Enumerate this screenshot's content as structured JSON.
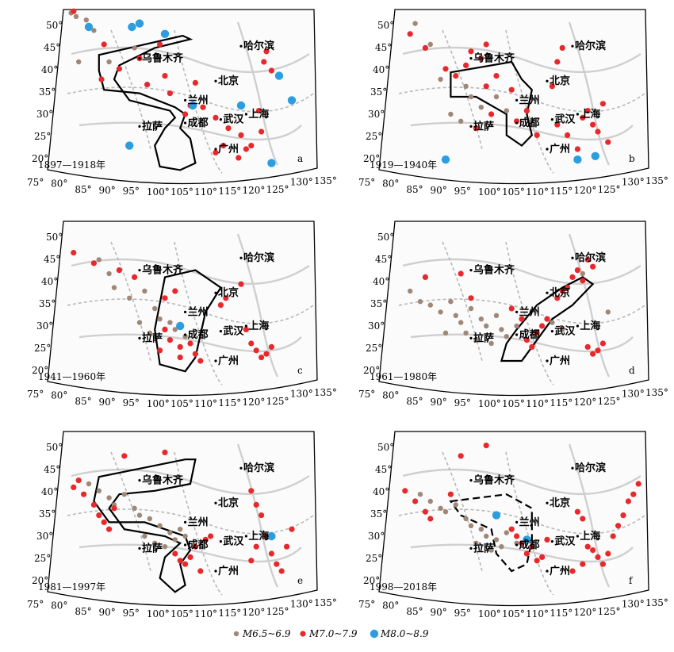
{
  "colors": {
    "m65": "#a08878",
    "m70": "#e8282a",
    "m80": "#2c9ee0",
    "frame": "#000000",
    "river": "#cfcfcf",
    "border": "#b8b8b8"
  },
  "panels": [
    {
      "letter": "a",
      "period": "1897—1918年",
      "lat_labels": [
        "50°",
        "45°",
        "40°",
        "35°",
        "30°",
        "25°",
        "20°"
      ],
      "lon_labels": [
        "75°",
        "80°",
        "85°",
        "90°",
        "95°",
        "100°",
        "105°",
        "110°",
        "115°",
        "120°",
        "125°",
        "130°",
        "135°"
      ],
      "cities": [
        "乌鲁木齐",
        "哈尔滨",
        "北京",
        "兰州",
        "拉萨",
        "成都",
        "武汉",
        "上海",
        "广州"
      ],
      "zone_style": "solid",
      "zone_icon": "region-outline-icon",
      "quakes": {
        "m65": [
          [
            3,
            2
          ],
          [
            5,
            4
          ],
          [
            12,
            12
          ],
          [
            6,
            30
          ],
          [
            18,
            30
          ],
          [
            28,
            22
          ],
          [
            9,
            6
          ]
        ],
        "m70": [
          [
            4,
            1
          ],
          [
            16,
            20
          ],
          [
            22,
            34
          ],
          [
            30,
            28
          ],
          [
            15,
            40
          ],
          [
            33,
            43
          ],
          [
            40,
            38
          ],
          [
            55,
            56
          ],
          [
            60,
            62
          ],
          [
            65,
            68
          ],
          [
            70,
            72
          ],
          [
            72,
            80
          ],
          [
            69,
            85
          ],
          [
            74,
            78
          ],
          [
            77,
            58
          ],
          [
            79,
            30
          ],
          [
            80,
            24
          ],
          [
            82,
            35
          ],
          [
            78,
            70
          ],
          [
            63,
            78
          ],
          [
            60,
            82
          ],
          [
            50,
            55
          ],
          [
            48,
            60
          ],
          [
            52,
            42
          ],
          [
            42,
            48
          ],
          [
            38,
            20
          ]
        ],
        "m80": [
          [
            10,
            10
          ],
          [
            40,
            14
          ],
          [
            51,
            55
          ],
          [
            70,
            55
          ],
          [
            82,
            88
          ],
          [
            85,
            38
          ],
          [
            90,
            52
          ],
          [
            26,
            78
          ],
          [
            30,
            8
          ],
          [
            27,
            10
          ]
        ]
      }
    },
    {
      "letter": "b",
      "period": "1919—1940年",
      "lat_labels": [
        "50°",
        "45°",
        "40°",
        "35°",
        "30°",
        "25°",
        "20°"
      ],
      "lon_labels": [
        "75°",
        "80°",
        "85°",
        "90°",
        "95°",
        "100°",
        "105°",
        "110°",
        "115°",
        "120°",
        "125°",
        "130°",
        "135°"
      ],
      "cities": [
        "乌鲁木齐",
        "哈尔滨",
        "北京",
        "兰州",
        "拉萨",
        "成都",
        "武汉",
        "上海",
        "广州"
      ],
      "zone_style": "solid",
      "zone_icon": "region-outline-icon",
      "quakes": {
        "m65": [
          [
            8,
            8
          ],
          [
            14,
            20
          ],
          [
            18,
            40
          ],
          [
            28,
            44
          ],
          [
            30,
            50
          ],
          [
            34,
            56
          ],
          [
            22,
            60
          ],
          [
            26,
            64
          ],
          [
            40,
            50
          ],
          [
            44,
            58
          ]
        ],
        "m70": [
          [
            6,
            14
          ],
          [
            12,
            22
          ],
          [
            20,
            34
          ],
          [
            24,
            38
          ],
          [
            28,
            32
          ],
          [
            36,
            44
          ],
          [
            40,
            38
          ],
          [
            46,
            46
          ],
          [
            38,
            60
          ],
          [
            48,
            64
          ],
          [
            32,
            68
          ],
          [
            52,
            58
          ],
          [
            56,
            72
          ],
          [
            64,
            66
          ],
          [
            68,
            72
          ],
          [
            74,
            62
          ],
          [
            76,
            58
          ],
          [
            78,
            66
          ],
          [
            80,
            70
          ],
          [
            82,
            54
          ],
          [
            84,
            76
          ],
          [
            72,
            80
          ],
          [
            30,
            24
          ],
          [
            36,
            20
          ],
          [
            34,
            28
          ],
          [
            62,
            44
          ],
          [
            64,
            30
          ],
          [
            66,
            22
          ]
        ],
        "m80": [
          [
            20,
            86
          ],
          [
            72,
            86
          ],
          [
            79,
            84
          ]
        ]
      }
    },
    {
      "letter": "c",
      "period": "1941—1960年",
      "lat_labels": [
        "50°",
        "45°",
        "40°",
        "35°",
        "30°",
        "25°",
        "20°"
      ],
      "lon_labels": [
        "75°",
        "80°",
        "85°",
        "90°",
        "95°",
        "100°",
        "105°",
        "110°",
        "115°",
        "120°",
        "125°",
        "130°",
        "135°"
      ],
      "cities": [
        "乌鲁木齐",
        "哈尔滨",
        "北京",
        "兰州",
        "拉萨",
        "成都",
        "武汉",
        "上海",
        "广州"
      ],
      "zone_style": "solid",
      "zone_icon": "region-outline-icon",
      "quakes": {
        "m65": [
          [
            14,
            22
          ],
          [
            18,
            30
          ],
          [
            20,
            38
          ],
          [
            26,
            44
          ],
          [
            32,
            40
          ],
          [
            36,
            50
          ],
          [
            38,
            56
          ],
          [
            42,
            58
          ],
          [
            44,
            62
          ],
          [
            30,
            58
          ],
          [
            34,
            64
          ],
          [
            48,
            66
          ]
        ],
        "m70": [
          [
            4,
            18
          ],
          [
            12,
            24
          ],
          [
            22,
            28
          ],
          [
            28,
            32
          ],
          [
            40,
            44
          ],
          [
            44,
            40
          ],
          [
            40,
            62
          ],
          [
            42,
            68
          ],
          [
            46,
            72
          ],
          [
            50,
            70
          ],
          [
            52,
            76
          ],
          [
            54,
            80
          ],
          [
            38,
            74
          ],
          [
            46,
            78
          ],
          [
            62,
            48
          ],
          [
            64,
            44
          ],
          [
            70,
            36
          ],
          [
            72,
            62
          ],
          [
            74,
            70
          ],
          [
            76,
            74
          ],
          [
            78,
            78
          ],
          [
            80,
            76
          ],
          [
            82,
            72
          ]
        ],
        "m80": [
          [
            46,
            60
          ]
        ]
      }
    },
    {
      "letter": "d",
      "period": "1961—1980年",
      "lat_labels": [
        "50°",
        "45°",
        "40°",
        "35°",
        "30°",
        "25°",
        "20°"
      ],
      "lon_labels": [
        "75°",
        "80°",
        "85°",
        "90°",
        "95°",
        "100°",
        "105°",
        "110°",
        "115°",
        "120°",
        "125°",
        "130°",
        "135°"
      ],
      "cities": [
        "乌鲁木齐",
        "哈尔滨",
        "北京",
        "兰州",
        "拉萨",
        "成都",
        "武汉",
        "上海",
        "广州"
      ],
      "zone_style": "solid",
      "zone_icon": "region-outline-icon",
      "quakes": {
        "m65": [
          [
            6,
            40
          ],
          [
            10,
            46
          ],
          [
            14,
            48
          ],
          [
            18,
            52
          ],
          [
            22,
            46
          ],
          [
            24,
            54
          ],
          [
            26,
            58
          ],
          [
            30,
            50
          ],
          [
            34,
            56
          ],
          [
            36,
            60
          ],
          [
            40,
            54
          ],
          [
            42,
            62
          ],
          [
            44,
            66
          ],
          [
            48,
            60
          ],
          [
            20,
            64
          ],
          [
            28,
            64
          ],
          [
            32,
            68
          ],
          [
            38,
            70
          ],
          [
            84,
            52
          ],
          [
            74,
            30
          ],
          [
            62,
            58
          ],
          [
            66,
            62
          ]
        ],
        "m70": [
          [
            12,
            32
          ],
          [
            26,
            30
          ],
          [
            30,
            44
          ],
          [
            46,
            50
          ],
          [
            50,
            56
          ],
          [
            52,
            68
          ],
          [
            54,
            72
          ],
          [
            56,
            64
          ],
          [
            58,
            60
          ],
          [
            60,
            56
          ],
          [
            64,
            44
          ],
          [
            66,
            40
          ],
          [
            68,
            38
          ],
          [
            70,
            32
          ],
          [
            72,
            28
          ],
          [
            74,
            34
          ],
          [
            76,
            22
          ],
          [
            78,
            26
          ],
          [
            76,
            72
          ],
          [
            78,
            76
          ],
          [
            80,
            74
          ],
          [
            82,
            70
          ]
        ],
        "m80": []
      }
    },
    {
      "letter": "e",
      "period": "1981—1997年",
      "lat_labels": [
        "50°",
        "45°",
        "40°",
        "35°",
        "30°",
        "25°",
        "20°"
      ],
      "lon_labels": [
        "75°",
        "80°",
        "85°",
        "90°",
        "95°",
        "100°",
        "105°",
        "110°",
        "115°",
        "120°",
        "125°",
        "130°",
        "135°"
      ],
      "cities": [
        "乌鲁木齐",
        "哈尔滨",
        "北京",
        "兰州",
        "拉萨",
        "成都",
        "武汉",
        "上海",
        "广州"
      ],
      "zone_style": "solid",
      "zone_icon": "region-outline-icon",
      "quakes": {
        "m65": [
          [
            10,
            30
          ],
          [
            14,
            34
          ],
          [
            18,
            38
          ],
          [
            20,
            42
          ],
          [
            24,
            36
          ],
          [
            28,
            44
          ],
          [
            30,
            48
          ],
          [
            34,
            50
          ],
          [
            38,
            54
          ],
          [
            42,
            58
          ],
          [
            44,
            62
          ],
          [
            46,
            56
          ],
          [
            48,
            60
          ],
          [
            32,
            60
          ],
          [
            36,
            64
          ],
          [
            40,
            66
          ]
        ],
        "m70": [
          [
            4,
            32
          ],
          [
            6,
            28
          ],
          [
            8,
            36
          ],
          [
            12,
            42
          ],
          [
            14,
            48
          ],
          [
            16,
            52
          ],
          [
            18,
            56
          ],
          [
            20,
            44
          ],
          [
            24,
            14
          ],
          [
            40,
            12
          ],
          [
            44,
            70
          ],
          [
            46,
            74
          ],
          [
            48,
            76
          ],
          [
            50,
            72
          ],
          [
            52,
            66
          ],
          [
            54,
            80
          ],
          [
            56,
            62
          ],
          [
            58,
            60
          ],
          [
            74,
            34
          ],
          [
            76,
            42
          ],
          [
            78,
            48
          ],
          [
            80,
            60
          ],
          [
            82,
            70
          ],
          [
            84,
            76
          ],
          [
            86,
            80
          ],
          [
            88,
            66
          ],
          [
            90,
            56
          ],
          [
            76,
            66
          ],
          [
            74,
            74
          ]
        ],
        "m80": [
          [
            82,
            60
          ]
        ]
      }
    },
    {
      "letter": "f",
      "period": "1998—2018年",
      "lat_labels": [
        "50°",
        "45°",
        "40°",
        "35°",
        "30°",
        "25°",
        "20°"
      ],
      "lon_labels": [
        "75°",
        "80°",
        "85°",
        "90°",
        "95°",
        "100°",
        "105°",
        "110°",
        "115°",
        "120°",
        "125°",
        "130°",
        "135°"
      ],
      "cities": [
        "乌鲁木齐",
        "哈尔滨",
        "北京",
        "兰州",
        "拉萨",
        "成都",
        "武汉",
        "上海",
        "广州"
      ],
      "zone_style": "dashed",
      "zone_icon": "region-outline-dashed-icon",
      "quakes": {
        "m65": [
          [
            10,
            36
          ],
          [
            14,
            40
          ],
          [
            18,
            44
          ],
          [
            20,
            46
          ],
          [
            24,
            42
          ],
          [
            28,
            50
          ],
          [
            30,
            54
          ],
          [
            34,
            56
          ],
          [
            36,
            60
          ],
          [
            40,
            62
          ],
          [
            42,
            66
          ],
          [
            44,
            58
          ],
          [
            48,
            64
          ],
          [
            32,
            64
          ],
          [
            38,
            68
          ]
        ],
        "m70": [
          [
            4,
            34
          ],
          [
            8,
            40
          ],
          [
            12,
            46
          ],
          [
            14,
            50
          ],
          [
            22,
            36
          ],
          [
            26,
            14
          ],
          [
            36,
            8
          ],
          [
            46,
            56
          ],
          [
            48,
            60
          ],
          [
            50,
            64
          ],
          [
            52,
            70
          ],
          [
            54,
            66
          ],
          [
            56,
            74
          ],
          [
            58,
            72
          ],
          [
            60,
            62
          ],
          [
            72,
            46
          ],
          [
            74,
            50
          ],
          [
            76,
            66
          ],
          [
            78,
            68
          ],
          [
            80,
            72
          ],
          [
            82,
            76
          ],
          [
            84,
            70
          ],
          [
            86,
            60
          ],
          [
            88,
            54
          ],
          [
            90,
            48
          ],
          [
            92,
            40
          ],
          [
            94,
            36
          ],
          [
            96,
            30
          ],
          [
            74,
            76
          ],
          [
            70,
            80
          ]
        ],
        "m80": [
          [
            40,
            48
          ],
          [
            52,
            62
          ]
        ]
      }
    }
  ],
  "legend": [
    {
      "label": "M6.5~6.9",
      "key": "m65"
    },
    {
      "label": "M7.0~7.9",
      "key": "m70"
    },
    {
      "label": "M8.0~8.9",
      "key": "m80"
    }
  ]
}
